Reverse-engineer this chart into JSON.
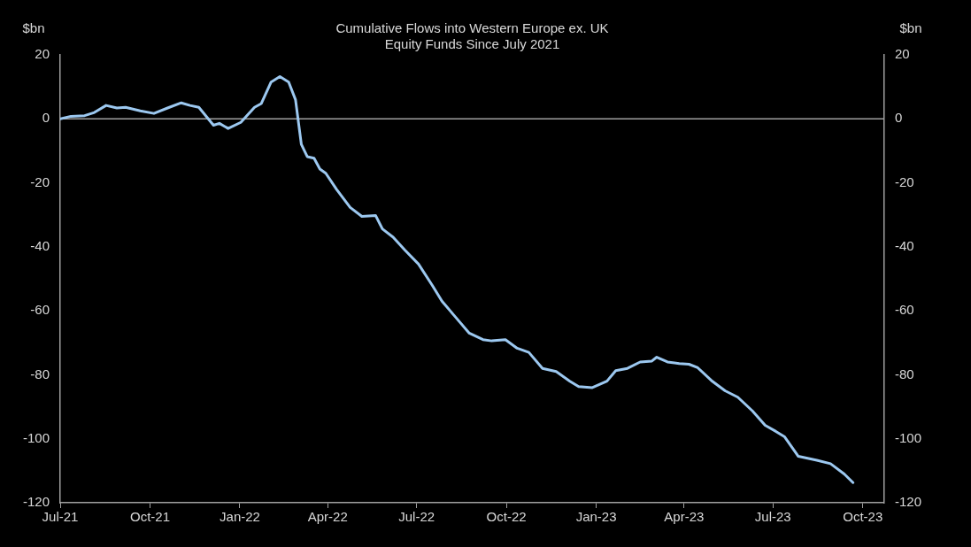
{
  "chart_data": {
    "type": "line",
    "title": "Cumulative Flows into Western Europe ex. UK Equity Funds Since July 2021",
    "ylabel": "$bn",
    "y2label": "$bn",
    "x": [
      "2021-07-01",
      "2021-07-12",
      "2021-07-26",
      "2021-08-05",
      "2021-08-17",
      "2021-08-28",
      "2021-09-06",
      "2021-09-21",
      "2021-10-05",
      "2021-10-19",
      "2021-11-02",
      "2021-11-11",
      "2021-11-20",
      "2021-12-05",
      "2021-12-11",
      "2021-12-20",
      "2022-01-02",
      "2022-01-16",
      "2022-01-23",
      "2022-02-02",
      "2022-02-11",
      "2022-02-20",
      "2022-02-27",
      "2022-03-05",
      "2022-03-11",
      "2022-03-18",
      "2022-03-24",
      "2022-03-30",
      "2022-04-10",
      "2022-04-24",
      "2022-05-06",
      "2022-05-20",
      "2022-05-27",
      "2022-06-07",
      "2022-06-19",
      "2022-07-03",
      "2022-07-17",
      "2022-07-27",
      "2022-08-10",
      "2022-08-24",
      "2022-09-07",
      "2022-09-16",
      "2022-09-30",
      "2022-10-12",
      "2022-10-24",
      "2022-11-07",
      "2022-11-21",
      "2022-12-05",
      "2022-12-14",
      "2022-12-28",
      "2023-01-12",
      "2023-01-21",
      "2023-02-02",
      "2023-02-15",
      "2023-02-27",
      "2023-03-04",
      "2023-03-15",
      "2023-03-27",
      "2023-04-06",
      "2023-04-15",
      "2023-04-29",
      "2023-05-13",
      "2023-05-26",
      "2023-06-10",
      "2023-06-23",
      "2023-07-04",
      "2023-07-13",
      "2023-07-27",
      "2023-08-15",
      "2023-08-29",
      "2023-09-12",
      "2023-09-21"
    ],
    "series": [
      {
        "color": "#9cc8f0",
        "values": [
          0,
          0.8,
          1,
          2,
          4.2,
          3.4,
          3.6,
          2.5,
          1.7,
          3.4,
          5,
          4.2,
          3.6,
          -2,
          -1.4,
          -3,
          -1.1,
          3.6,
          4.8,
          11.5,
          13.2,
          11.5,
          6,
          -8,
          -11.8,
          -12.3,
          -15.7,
          -17,
          -22,
          -27.7,
          -30.5,
          -30.2,
          -34.4,
          -37,
          -41,
          -45.4,
          -52,
          -57,
          -62,
          -67,
          -69,
          -69.4,
          -69,
          -71.7,
          -73,
          -78,
          -79,
          -82,
          -83.7,
          -84,
          -82,
          -78.7,
          -78,
          -76,
          -75.7,
          -74.5,
          -76,
          -76.5,
          -76.7,
          -77.8,
          -81.8,
          -85,
          -87,
          -91.3,
          -95.8,
          -97.7,
          -99.4,
          -105.5,
          -106.7,
          -107.8,
          -111,
          -113.7
        ]
      }
    ],
    "xlim": [
      "2021-07-01",
      "2023-10-23"
    ],
    "xticks": [
      {
        "value": "2021-07-01",
        "label": "Jul-21"
      },
      {
        "value": "2021-10-01",
        "label": "Oct-21"
      },
      {
        "value": "2022-01-01",
        "label": "Jan-22"
      },
      {
        "value": "2022-04-01",
        "label": "Apr-22"
      },
      {
        "value": "2022-07-01",
        "label": "Jul-22"
      },
      {
        "value": "2022-10-01",
        "label": "Oct-22"
      },
      {
        "value": "2023-01-01",
        "label": "Jan-23"
      },
      {
        "value": "2023-04-01",
        "label": "Apr-23"
      },
      {
        "value": "2023-07-01",
        "label": "Jul-23"
      },
      {
        "value": "2023-10-01",
        "label": "Oct-23"
      }
    ],
    "ylim": [
      -120,
      20
    ],
    "yticks": [
      -120,
      -100,
      -80,
      -60,
      -40,
      -20,
      0,
      20
    ],
    "y2lim": [
      -120,
      20
    ],
    "y2ticks": [
      -120,
      -100,
      -80,
      -60,
      -40,
      -20,
      0,
      20
    ],
    "ref_lines": [
      {
        "axis": "y",
        "value": 0,
        "color": "#a0a0a0"
      }
    ],
    "grid": false,
    "legend": false,
    "marker": "none",
    "line_style": "solid"
  }
}
